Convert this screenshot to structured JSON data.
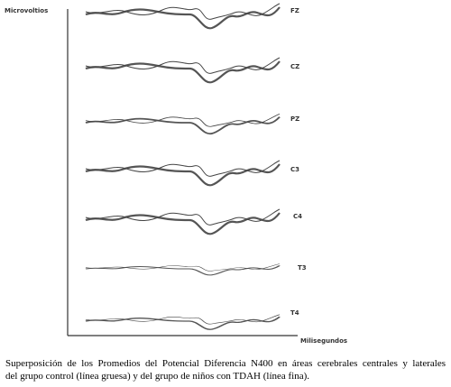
{
  "axis_labels": {
    "y": "Microvoltios",
    "x": "Milisegundos"
  },
  "channels": [
    "FZ",
    "CZ",
    "PZ",
    "C3",
    "C4",
    "T3",
    "T4"
  ],
  "caption": [
    "Superposición de los Promedios del Potencial Diferencia  N400 en áreas cerebrales centrales y laterales",
    "del grupo control (línea gruesa) y del grupo de niños con TDAH (línea fina)."
  ]
}
